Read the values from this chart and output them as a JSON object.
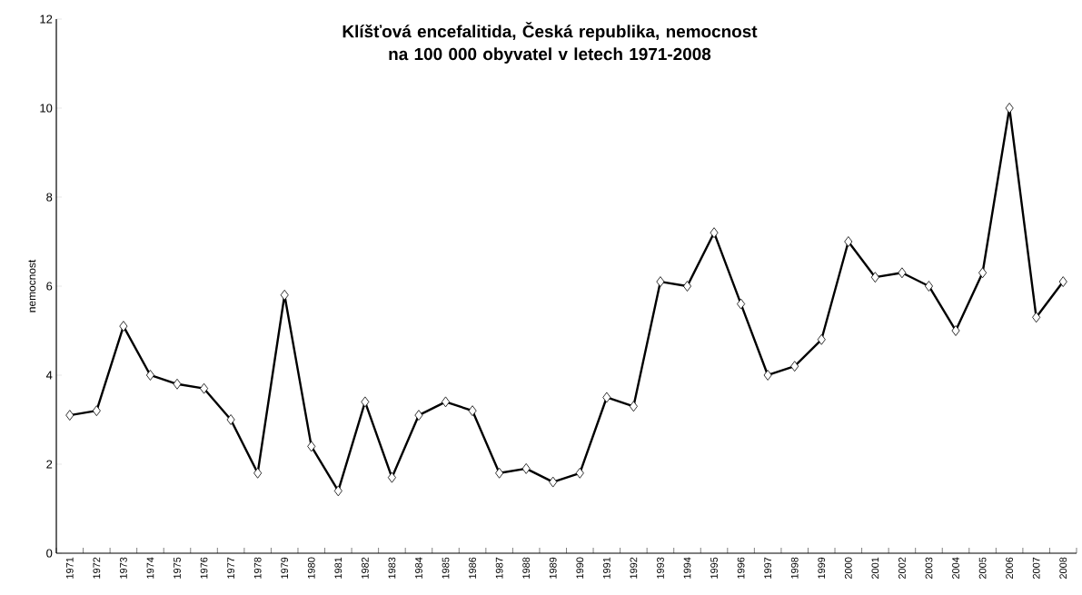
{
  "chart_data": {
    "type": "line",
    "title": "Klíšťová encefalitida, Česká republika, nemocnost na 100 000 obyvatel v letech 1971-2008",
    "ylabel": "nemocnost",
    "categories": [
      "1971",
      "1972",
      "1973",
      "1974",
      "1975",
      "1976",
      "1977",
      "1978",
      "1979",
      "1980",
      "1981",
      "1982",
      "1983",
      "1984",
      "1985",
      "1986",
      "1987",
      "1988",
      "1989",
      "1990",
      "1991",
      "1992",
      "1993",
      "1994",
      "1995",
      "1996",
      "1997",
      "1998",
      "1999",
      "2000",
      "2001",
      "2002",
      "2003",
      "2004",
      "2005",
      "2006",
      "2007",
      "2008"
    ],
    "values": [
      3.1,
      3.2,
      5.1,
      4.0,
      3.8,
      3.7,
      3.0,
      1.8,
      5.8,
      2.4,
      1.4,
      3.4,
      1.7,
      3.1,
      3.4,
      3.2,
      1.8,
      1.9,
      1.6,
      1.8,
      3.5,
      3.3,
      6.1,
      6.0,
      7.2,
      5.6,
      4.0,
      4.2,
      4.8,
      7.0,
      6.2,
      6.3,
      6.0,
      5.0,
      6.3,
      10.0,
      5.3,
      6.1
    ],
    "color": "#000000",
    "marker": "diamond",
    "line_style": "solid",
    "grid": false,
    "ylim": [
      0,
      12
    ],
    "yticks": [
      0,
      2,
      4,
      6,
      8,
      10,
      12
    ]
  }
}
